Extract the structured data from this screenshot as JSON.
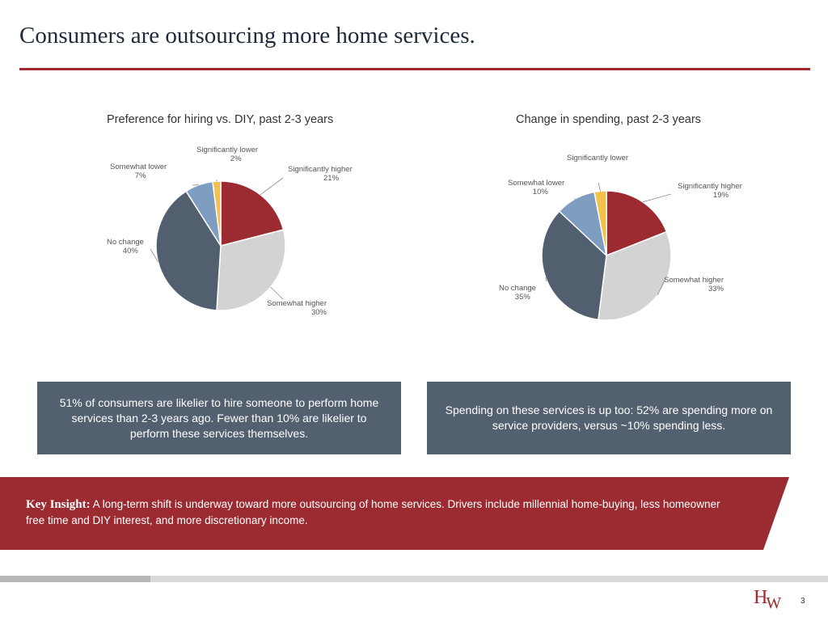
{
  "title": "Consumers are outsourcing more home services.",
  "chart_data": [
    {
      "type": "pie",
      "title": "Preference for hiring vs. DIY, past 2-3 years",
      "start_angle": 0,
      "slices": [
        {
          "label": "Significantly higher",
          "value": 21,
          "display": "21%",
          "color": "#9b2a31"
        },
        {
          "label": "Somewhat higher",
          "value": 30,
          "display": "30%",
          "color": "#d3d3d3"
        },
        {
          "label": "No change",
          "value": 40,
          "display": "40%",
          "color": "#525f6f"
        },
        {
          "label": "Somewhat lower",
          "value": 7,
          "display": "7%",
          "color": "#7e9dc0"
        },
        {
          "label": "Significantly lower",
          "value": 2,
          "display": "2%",
          "color": "#f2c14e"
        }
      ]
    },
    {
      "type": "pie",
      "title": "Change in spending, past 2-3 years",
      "start_angle": 0,
      "slices": [
        {
          "label": "Significantly higher",
          "value": 19,
          "display": "19%",
          "color": "#9b2a31"
        },
        {
          "label": "Somewhat higher",
          "value": 33,
          "display": "33%",
          "color": "#d3d3d3"
        },
        {
          "label": "No change",
          "value": 35,
          "display": "35%",
          "color": "#525f6f"
        },
        {
          "label": "Somewhat lower",
          "value": 10,
          "display": "10%",
          "color": "#7e9dc0"
        },
        {
          "label": "Significantly lower",
          "value": 3,
          "display": "",
          "color": "#f2c14e"
        }
      ]
    }
  ],
  "callouts": {
    "left": "51% of consumers are likelier to hire someone to perform home services than 2-3 years ago. Fewer than 10% are likelier to perform these services themselves.",
    "right": "Spending on these services is up too: 52% are spending more on service providers, versus ~10% spending less."
  },
  "key_insight": {
    "label": "Key Insight:",
    "text": "A long-term shift is underway toward more outsourcing of home services. Drivers include millennial home-buying, less homeowner free time and DIY interest, and more discretionary income."
  },
  "footer": {
    "logo_top": "H",
    "logo_bottom": "W",
    "page_number": "3",
    "brand_color": "#a3262e"
  }
}
